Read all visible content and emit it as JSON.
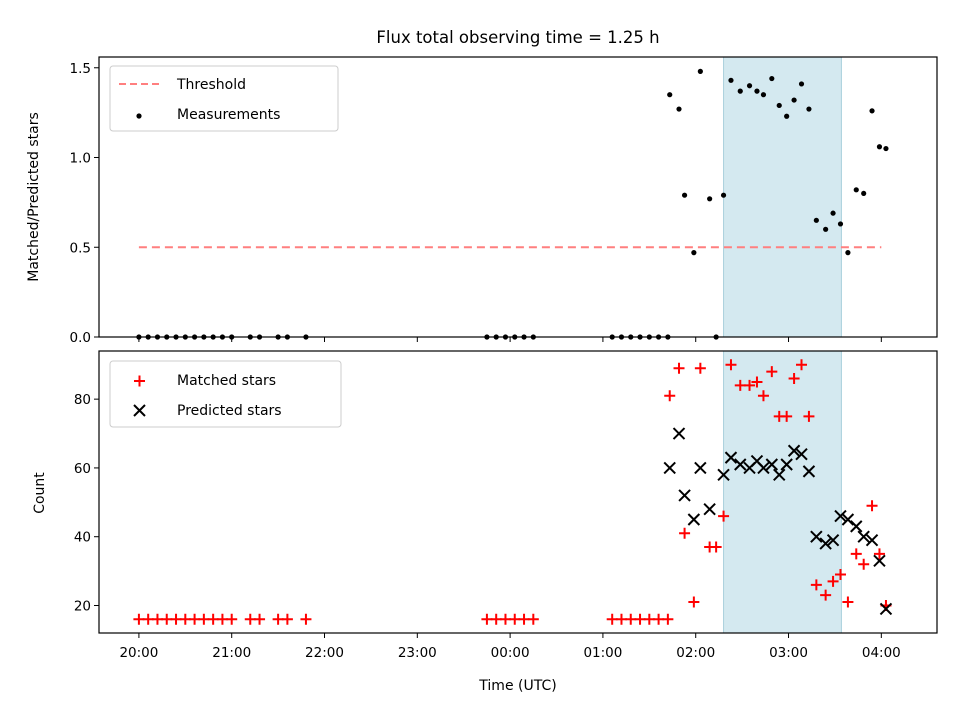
{
  "chart_data": [
    {
      "type": "scatter",
      "title": "Flux total observing time = 1.25 h",
      "ylabel": "Matched/Predicted stars",
      "ylim": [
        0,
        1.56
      ],
      "yticks": [
        "0.0",
        "0.5",
        "1.0",
        "1.5"
      ],
      "ytick_values": [
        0,
        0.5,
        1.0,
        1.5
      ],
      "xlim_hours": [
        19.57,
        28.6
      ],
      "xtick_values_hours": [
        20,
        21,
        22,
        23,
        24,
        25,
        26,
        27,
        28
      ],
      "shaded_interval_hours": [
        26.3,
        27.57
      ],
      "shaded_color": "#d4e9f0",
      "legend_position": "upper left",
      "legend": [
        {
          "label": "Threshold",
          "marker": "dashed-line",
          "color": "#ff7f7f"
        },
        {
          "label": "Measurements",
          "marker": "dot",
          "color": "#000000"
        }
      ],
      "series": [
        {
          "name": "Threshold",
          "kind": "line",
          "color": "#ff7f7f",
          "x": [
            20.0,
            28.0
          ],
          "y": [
            0.5,
            0.5
          ]
        },
        {
          "name": "Measurements",
          "kind": "dot",
          "color": "#000000",
          "x": [
            20.0,
            20.1,
            20.2,
            20.3,
            20.4,
            20.5,
            20.6,
            20.7,
            20.8,
            20.9,
            21.0,
            21.2,
            21.3,
            21.5,
            21.6,
            21.8,
            23.75,
            23.85,
            23.95,
            24.05,
            24.15,
            24.25,
            25.1,
            25.2,
            25.3,
            25.4,
            25.5,
            25.6,
            25.7,
            25.72,
            25.82,
            25.88,
            25.98,
            26.05,
            26.15,
            26.22,
            26.3,
            26.38,
            26.48,
            26.58,
            26.66,
            26.73,
            26.82,
            26.9,
            26.98,
            27.06,
            27.14,
            27.22,
            27.3,
            27.4,
            27.48,
            27.56,
            27.64,
            27.73,
            27.81,
            27.9,
            27.98,
            28.05
          ],
          "y": [
            0,
            0,
            0,
            0,
            0,
            0,
            0,
            0,
            0,
            0,
            0,
            0,
            0,
            0,
            0,
            0,
            0,
            0,
            0,
            0,
            0,
            0,
            0,
            0,
            0,
            0,
            0,
            0,
            0,
            1.35,
            1.27,
            0.79,
            0.47,
            1.48,
            0.77,
            0,
            0.79,
            1.43,
            1.37,
            1.4,
            1.37,
            1.35,
            1.44,
            1.29,
            1.23,
            1.32,
            1.41,
            1.27,
            0.65,
            0.6,
            0.69,
            0.63,
            0.47,
            0.82,
            0.8,
            1.26,
            1.06,
            1.05
          ]
        }
      ]
    },
    {
      "type": "scatter",
      "xlabel": "Time (UTC)",
      "ylabel": "Count",
      "ylim": [
        12,
        94
      ],
      "yticks": [
        "20",
        "40",
        "60",
        "80"
      ],
      "ytick_values": [
        20,
        40,
        60,
        80
      ],
      "xlim_hours": [
        19.57,
        28.6
      ],
      "xtick_values_hours": [
        20,
        21,
        22,
        23,
        24,
        25,
        26,
        27,
        28
      ],
      "xtick_labels": [
        "20:00",
        "21:00",
        "22:00",
        "23:00",
        "00:00",
        "01:00",
        "02:00",
        "03:00",
        "04:00"
      ],
      "shaded_interval_hours": [
        26.3,
        27.57
      ],
      "shaded_color": "#d4e9f0",
      "legend_position": "upper left",
      "legend": [
        {
          "label": "Matched stars",
          "marker": "plus",
          "color": "#ff0000"
        },
        {
          "label": "Predicted stars",
          "marker": "x",
          "color": "#000000"
        }
      ],
      "series": [
        {
          "name": "Matched stars",
          "kind": "plus",
          "color": "#ff0000",
          "x": [
            20.0,
            20.1,
            20.2,
            20.3,
            20.4,
            20.5,
            20.6,
            20.7,
            20.8,
            20.9,
            21.0,
            21.2,
            21.3,
            21.5,
            21.6,
            21.8,
            23.75,
            23.85,
            23.95,
            24.05,
            24.15,
            24.25,
            25.1,
            25.2,
            25.3,
            25.4,
            25.5,
            25.6,
            25.7,
            25.72,
            25.82,
            25.88,
            25.98,
            26.05,
            26.15,
            26.22,
            26.3,
            26.38,
            26.48,
            26.58,
            26.66,
            26.73,
            26.82,
            26.9,
            26.98,
            27.06,
            27.14,
            27.22,
            27.3,
            27.4,
            27.48,
            27.56,
            27.64,
            27.73,
            27.81,
            27.9,
            27.98,
            28.05
          ],
          "y": [
            16,
            16,
            16,
            16,
            16,
            16,
            16,
            16,
            16,
            16,
            16,
            16,
            16,
            16,
            16,
            16,
            16,
            16,
            16,
            16,
            16,
            16,
            16,
            16,
            16,
            16,
            16,
            16,
            16,
            81,
            89,
            41,
            21,
            89,
            37,
            37,
            46,
            90,
            84,
            84,
            85,
            81,
            88,
            75,
            75,
            86,
            90,
            75,
            26,
            23,
            27,
            29,
            21,
            35,
            32,
            49,
            35,
            20
          ]
        },
        {
          "name": "Predicted stars",
          "kind": "x",
          "color": "#000000",
          "x": [
            25.72,
            25.82,
            25.88,
            25.98,
            26.05,
            26.15,
            26.3,
            26.38,
            26.48,
            26.58,
            26.66,
            26.73,
            26.82,
            26.9,
            26.98,
            27.06,
            27.14,
            27.22,
            27.3,
            27.4,
            27.48,
            27.56,
            27.64,
            27.73,
            27.81,
            27.9,
            27.98,
            28.05
          ],
          "y": [
            60,
            70,
            52,
            45,
            60,
            48,
            58,
            63,
            61,
            60,
            62,
            60,
            61,
            58,
            61,
            65,
            64,
            59,
            40,
            38,
            39,
            46,
            45,
            43,
            40,
            39,
            33,
            19
          ]
        }
      ]
    }
  ]
}
